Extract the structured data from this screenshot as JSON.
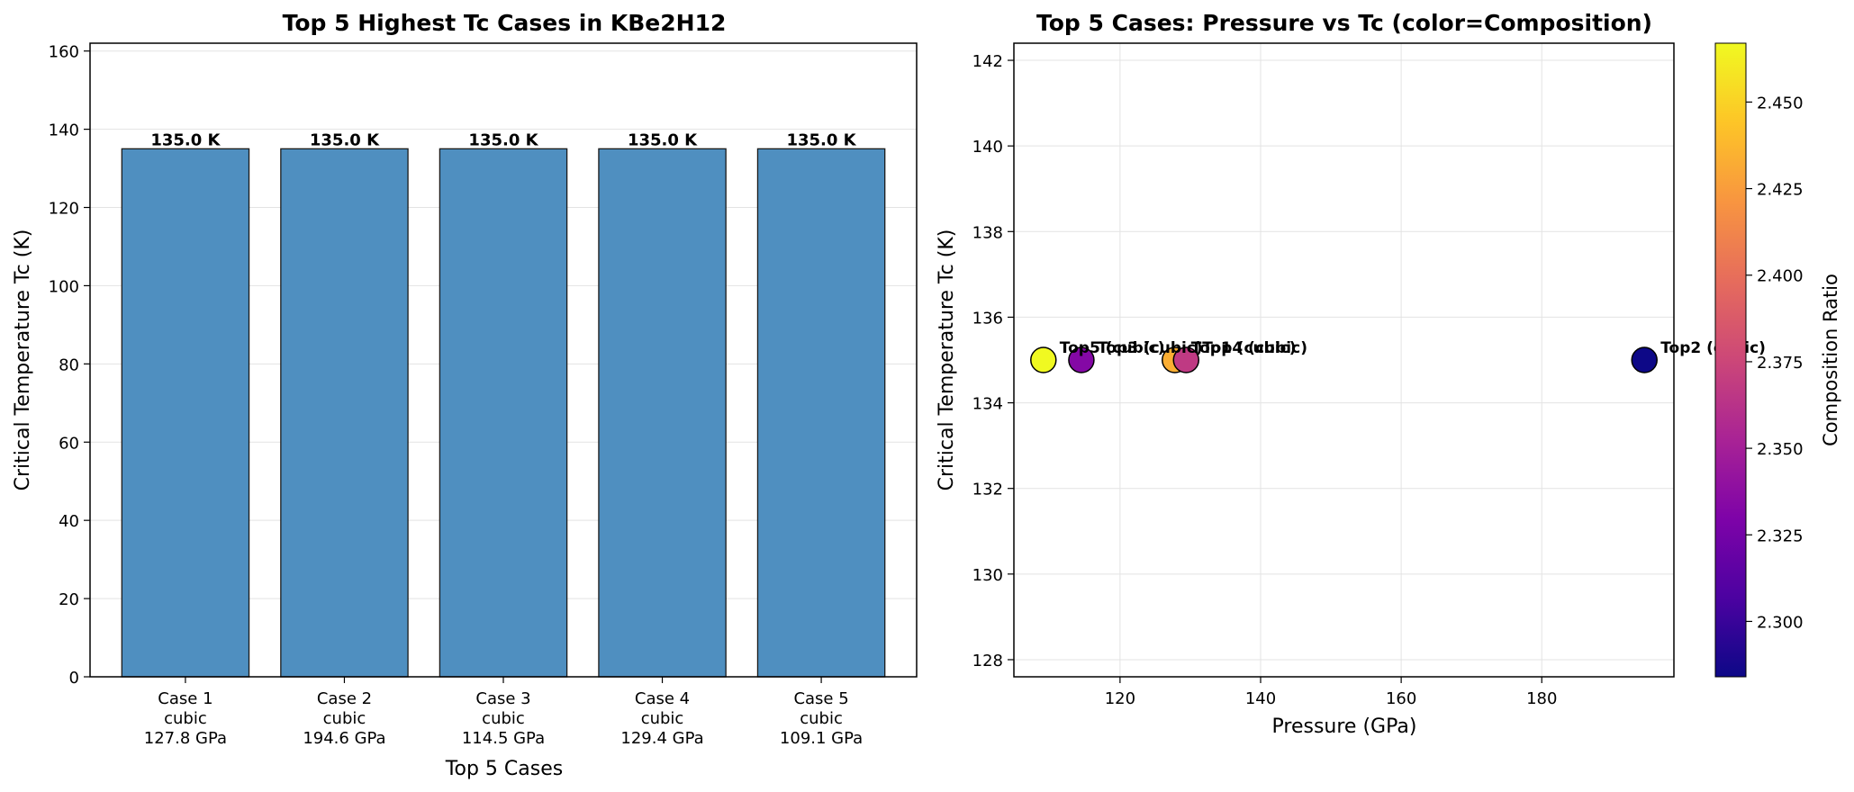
{
  "chart_data": [
    {
      "type": "bar",
      "title": "Top 5 Highest Tc Cases in KBe2H12",
      "xlabel": "Top 5 Cases",
      "ylabel": "Critical Temperature Tc (K)",
      "ylim": [
        0,
        162
      ],
      "yticks": [
        0,
        20,
        40,
        60,
        80,
        100,
        120,
        140,
        160
      ],
      "grid": "y",
      "bar_color": "#4f8fc0",
      "edge_color": "#1a1a1a",
      "categories": [
        [
          "Case 1",
          "cubic",
          "127.8 GPa"
        ],
        [
          "Case 2",
          "cubic",
          "194.6 GPa"
        ],
        [
          "Case 3",
          "cubic",
          "114.5 GPa"
        ],
        [
          "Case 4",
          "cubic",
          "129.4 GPa"
        ],
        [
          "Case 5",
          "cubic",
          "109.1 GPa"
        ]
      ],
      "values": [
        135.0,
        135.0,
        135.0,
        135.0,
        135.0
      ],
      "value_labels": [
        "135.0 K",
        "135.0 K",
        "135.0 K",
        "135.0 K",
        "135.0 K"
      ]
    },
    {
      "type": "scatter",
      "title": "Top 5 Cases: Pressure vs Tc (color=Composition)",
      "xlabel": "Pressure (GPa)",
      "ylabel": "Critical Temperature Tc (K)",
      "xlim": [
        104.9,
        198.8
      ],
      "ylim": [
        127.6,
        142.4
      ],
      "xticks": [
        120,
        140,
        160,
        180
      ],
      "yticks": [
        128,
        130,
        132,
        134,
        136,
        138,
        140,
        142
      ],
      "grid": "both",
      "colorbar": {
        "label": "Composition Ratio",
        "range": [
          2.284,
          2.467
        ],
        "ticks": [
          "2.300",
          "2.325",
          "2.350",
          "2.375",
          "2.400",
          "2.425",
          "2.450"
        ],
        "tick_values": [
          2.3,
          2.325,
          2.35,
          2.375,
          2.4,
          2.425,
          2.45
        ],
        "colormap": "plasma"
      },
      "points": [
        {
          "label": "Top5 (cubic)",
          "x": 109.1,
          "y": 135.0,
          "composition": 2.467
        },
        {
          "label": "Top3 (cubic)",
          "x": 114.5,
          "y": 135.0,
          "composition": 2.333
        },
        {
          "label": "Top1 (cubic)",
          "x": 127.8,
          "y": 135.0,
          "composition": 2.433
        },
        {
          "label": "Top4 (cubic)",
          "x": 129.4,
          "y": 135.0,
          "composition": 2.367
        },
        {
          "label": "Top2 (cubic)",
          "x": 194.6,
          "y": 135.0,
          "composition": 2.284
        }
      ]
    }
  ]
}
